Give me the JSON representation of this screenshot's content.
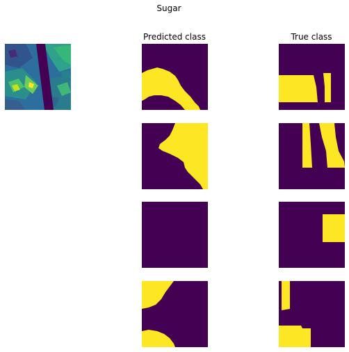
{
  "figure": {
    "title": "Sugar",
    "column_titles": {
      "predicted": "Predicted class",
      "true": "True class"
    }
  },
  "colors": {
    "mask_background": "#440154",
    "mask_foreground": "#fde725",
    "image_dark": "#3b0f6f",
    "image_mid": "#2c7fb8",
    "image_teal": "#21918c",
    "image_green": "#5ec962",
    "image_yellow": "#fde725"
  },
  "panels": {
    "input_image": "satellite-cloud-image",
    "predicted_masks": [
      "predicted-mask-1",
      "predicted-mask-2",
      "predicted-mask-3",
      "predicted-mask-4"
    ],
    "true_masks": [
      "true-mask-1",
      "true-mask-2",
      "true-mask-3",
      "true-mask-4"
    ]
  }
}
